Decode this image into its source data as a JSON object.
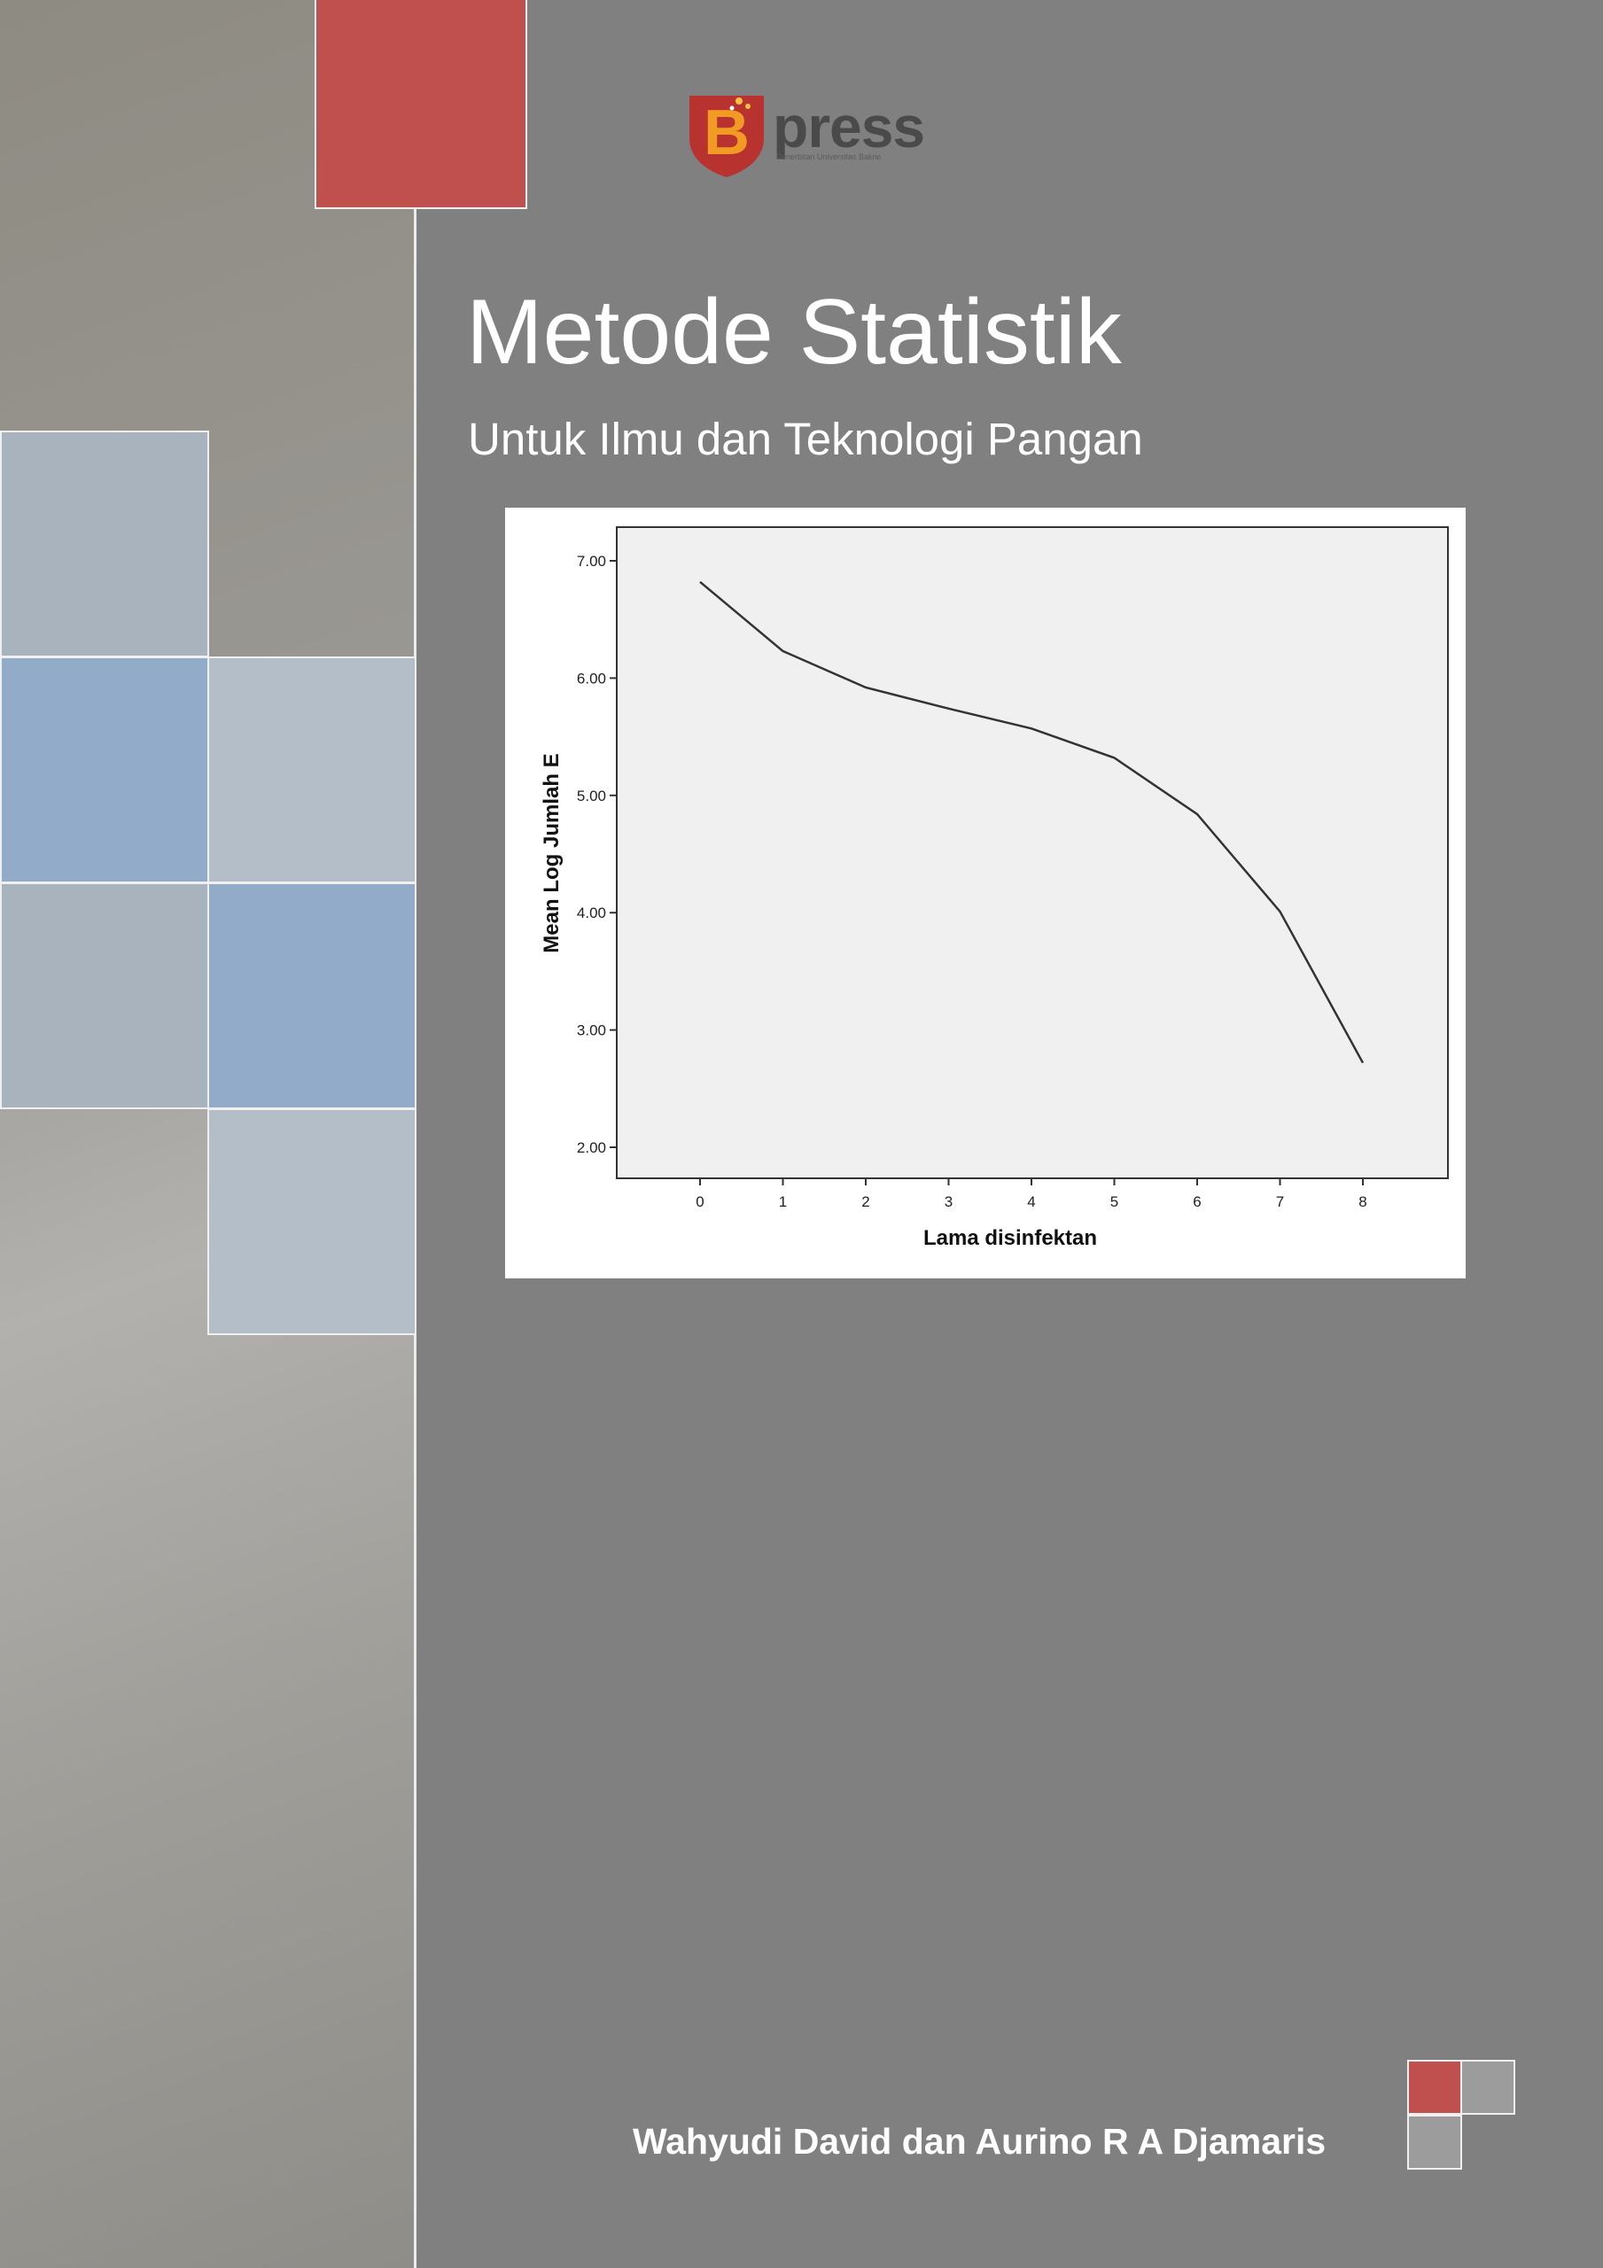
{
  "publisher": {
    "logo_letter": "B",
    "logo_word": "press",
    "logo_tagline": "Penerbitan Universitas Bakrie"
  },
  "cover": {
    "title": "Metode Statistik",
    "subtitle": "Untuk Ilmu dan Teknologi Pangan",
    "authors": "Wahyudi David dan Aurino R A Djamaris"
  },
  "colors": {
    "background": "#808080",
    "accent_red": "#c0504d",
    "accent_blue": "#92abc9",
    "text": "#ffffff"
  },
  "chart_data": {
    "type": "line",
    "x": [
      0,
      1,
      2,
      3,
      4,
      5,
      6,
      7,
      8
    ],
    "categories": [
      "0",
      "1",
      "2",
      "3",
      "4",
      "5",
      "6",
      "7",
      "8"
    ],
    "series": [
      {
        "values": [
          6.82,
          6.23,
          5.92,
          5.74,
          5.57,
          5.32,
          4.84,
          4.01,
          2.72
        ]
      }
    ],
    "xlabel": "Lama disinfektan",
    "ylabel": "Mean Log Jumlah E",
    "ylim": [
      2.0,
      7.0
    ],
    "yticks": [
      "2.00",
      "3.00",
      "4.00",
      "5.00",
      "6.00",
      "7.00"
    ],
    "grid": false
  }
}
